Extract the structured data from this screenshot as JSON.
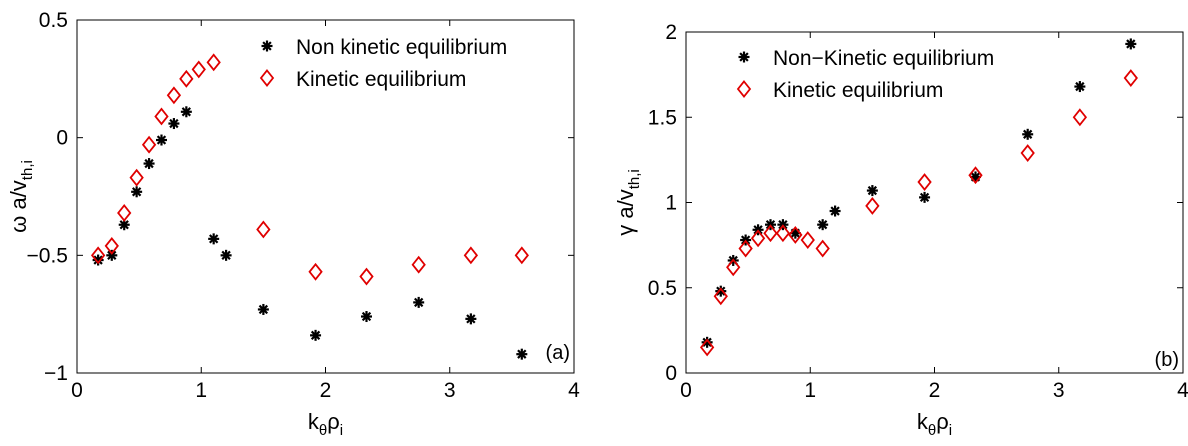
{
  "chart_data": [
    {
      "type": "scatter",
      "panel_label": "(a)",
      "xlabel": {
        "main": "k",
        "sub1": "θ",
        "mid": "ρ",
        "sub2": "i"
      },
      "ylabel": {
        "main": "ω a/v",
        "sub": "th,i"
      },
      "xlim": [
        0,
        4
      ],
      "ylim": [
        -1,
        0.5
      ],
      "xticks": [
        0,
        1,
        2,
        3,
        4
      ],
      "xtick_labels": [
        "0",
        "1",
        "2",
        "3",
        "4"
      ],
      "yticks": [
        -1,
        -0.5,
        0,
        0.5
      ],
      "ytick_labels": [
        "−1",
        "−0.5",
        "0",
        "0.5"
      ],
      "grid": false,
      "legend_position": "top-right",
      "series": [
        {
          "name": "Non kinetic equilibrium",
          "marker": "asterisk",
          "color": "#000000",
          "x": [
            0.17,
            0.28,
            0.38,
            0.48,
            0.58,
            0.68,
            0.78,
            0.88,
            1.1,
            1.2,
            1.5,
            1.92,
            2.33,
            2.75,
            3.17,
            3.58
          ],
          "y": [
            -0.52,
            -0.5,
            -0.37,
            -0.23,
            -0.11,
            -0.01,
            0.06,
            0.11,
            -0.43,
            -0.5,
            -0.73,
            -0.84,
            -0.76,
            -0.7,
            -0.77,
            -0.92
          ]
        },
        {
          "name": "Kinetic equilibrium",
          "marker": "diamond",
          "color": "#e00000",
          "x": [
            0.17,
            0.28,
            0.38,
            0.48,
            0.58,
            0.68,
            0.78,
            0.88,
            0.98,
            1.1,
            1.5,
            1.92,
            2.33,
            2.75,
            3.17,
            3.58
          ],
          "y": [
            -0.5,
            -0.46,
            -0.32,
            -0.17,
            -0.03,
            0.09,
            0.18,
            0.25,
            0.29,
            0.32,
            -0.39,
            -0.57,
            -0.59,
            -0.54,
            -0.5,
            -0.5
          ]
        }
      ]
    },
    {
      "type": "scatter",
      "panel_label": "(b)",
      "xlabel": {
        "main": "k",
        "sub1": "θ",
        "mid": "ρ",
        "sub2": "i"
      },
      "ylabel": {
        "main": "γ a/v",
        "sub": "th,i"
      },
      "xlim": [
        0,
        4
      ],
      "ylim": [
        0,
        2
      ],
      "xticks": [
        0,
        1,
        2,
        3,
        4
      ],
      "xtick_labels": [
        "0",
        "1",
        "2",
        "3",
        "4"
      ],
      "yticks": [
        0,
        0.5,
        1,
        1.5,
        2
      ],
      "ytick_labels": [
        "0",
        "0.5",
        "1",
        "1.5",
        "2"
      ],
      "grid": false,
      "legend_position": "top-left",
      "series": [
        {
          "name": "Non−Kinetic equilibrium",
          "marker": "asterisk",
          "color": "#000000",
          "x": [
            0.17,
            0.28,
            0.38,
            0.48,
            0.58,
            0.68,
            0.78,
            0.88,
            1.1,
            1.2,
            1.5,
            1.92,
            2.33,
            2.75,
            3.17,
            3.58
          ],
          "y": [
            0.18,
            0.48,
            0.66,
            0.78,
            0.84,
            0.87,
            0.87,
            0.82,
            0.87,
            0.95,
            1.07,
            1.03,
            1.15,
            1.4,
            1.68,
            1.93
          ]
        },
        {
          "name": "Kinetic equilibrium",
          "marker": "diamond",
          "color": "#e00000",
          "x": [
            0.17,
            0.28,
            0.38,
            0.48,
            0.58,
            0.68,
            0.78,
            0.88,
            0.98,
            1.1,
            1.5,
            1.92,
            2.33,
            2.75,
            3.17,
            3.58
          ],
          "y": [
            0.15,
            0.45,
            0.62,
            0.73,
            0.79,
            0.82,
            0.82,
            0.81,
            0.78,
            0.73,
            0.98,
            1.12,
            1.16,
            1.29,
            1.5,
            1.73
          ]
        }
      ]
    }
  ]
}
